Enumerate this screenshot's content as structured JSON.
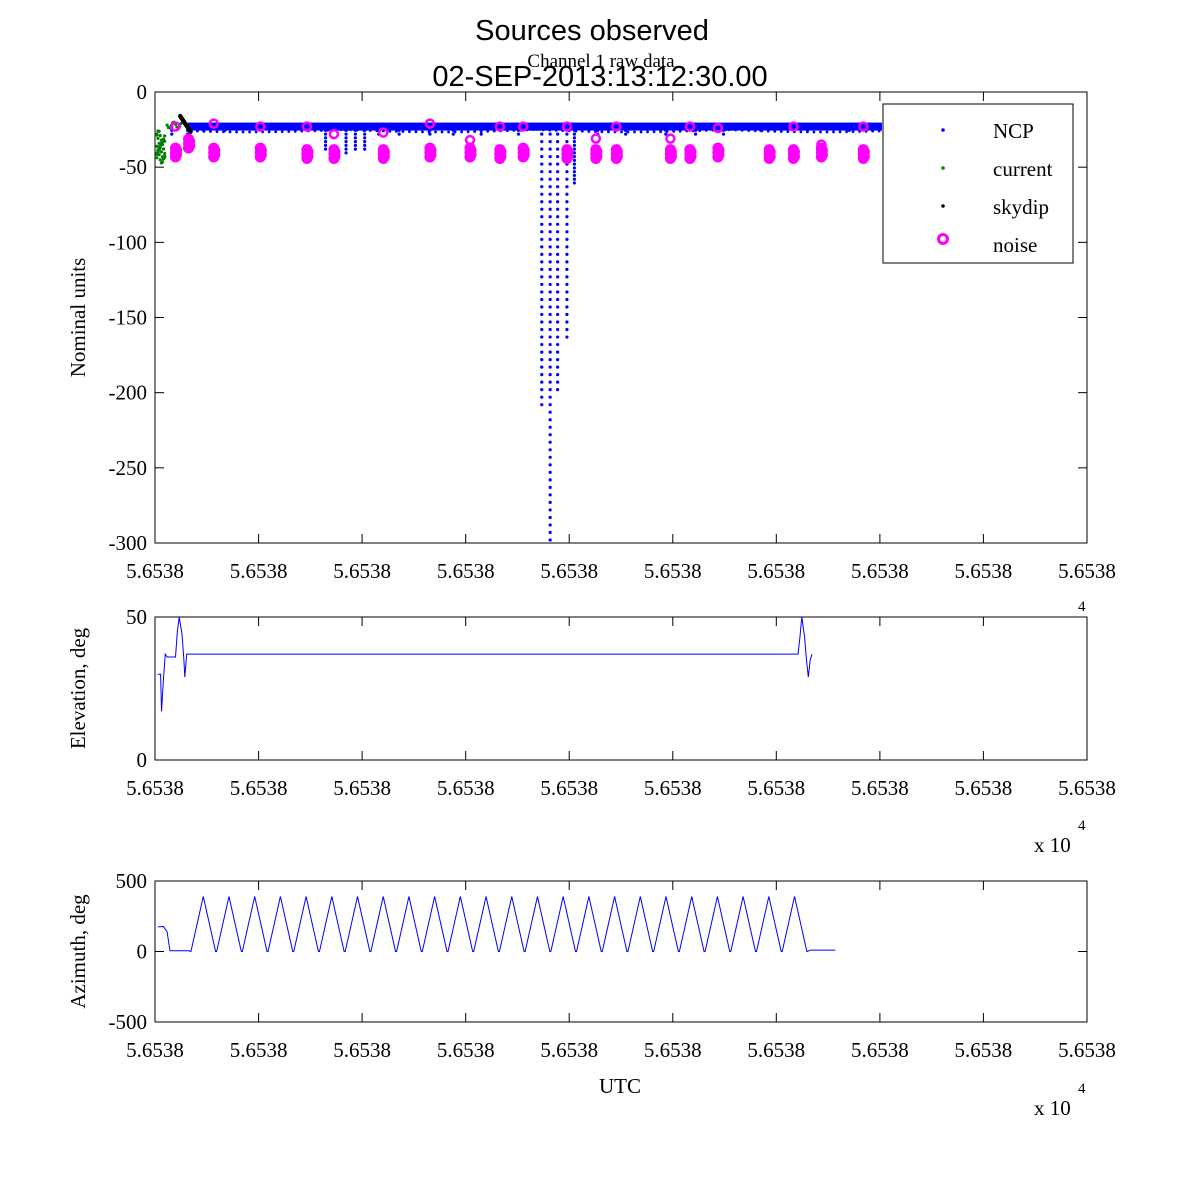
{
  "figure": {
    "title_line1": "Sources observed",
    "title_line2": "02-SEP-2013:13:12:30.00",
    "overlay_subtitle": "Channel 1 raw data",
    "exponent_label": "x 10",
    "exponent_power": "4",
    "x_axis_label": "UTC"
  },
  "chart_data": [
    {
      "type": "scatter",
      "ylabel": "Nominal units",
      "ylim": [
        -300,
        0
      ],
      "yticks": [
        "0",
        "-50",
        "-100",
        "-150",
        "-200",
        "-250",
        "-300"
      ],
      "xticklabels": [
        "5.6538",
        "5.6538",
        "5.6538",
        "5.6538",
        "5.6538",
        "5.6538",
        "5.6538",
        "5.6538",
        "5.6538",
        "5.6538"
      ],
      "legend_position": "top-right",
      "series": [
        {
          "name": "NCP",
          "color": "#0000ff",
          "marker": "dot",
          "baseline": -23,
          "spikes": [
            {
              "x": 0.415,
              "min": -212
            },
            {
              "x": 0.424,
              "min": -300
            },
            {
              "x": 0.432,
              "min": -200
            },
            {
              "x": 0.442,
              "min": -165
            },
            {
              "x": 0.45,
              "min": -62
            },
            {
              "x": 0.183,
              "min": -40
            },
            {
              "x": 0.205,
              "min": -42
            },
            {
              "x": 0.215,
              "min": -40
            },
            {
              "x": 0.225,
              "min": -40
            },
            {
              "x": 0.018,
              "min": -30
            },
            {
              "x": 0.035,
              "min": -28
            },
            {
              "x": 0.052,
              "min": -27
            },
            {
              "x": 0.075,
              "min": -26
            },
            {
              "x": 0.108,
              "min": -25
            },
            {
              "x": 0.135,
              "min": -25
            },
            {
              "x": 0.24,
              "min": -30
            },
            {
              "x": 0.262,
              "min": -30
            },
            {
              "x": 0.295,
              "min": -30
            },
            {
              "x": 0.32,
              "min": -30
            },
            {
              "x": 0.35,
              "min": -29
            },
            {
              "x": 0.39,
              "min": -30
            },
            {
              "x": 0.475,
              "min": -30
            },
            {
              "x": 0.505,
              "min": -29
            },
            {
              "x": 0.548,
              "min": -28
            },
            {
              "x": 0.58,
              "min": -28
            },
            {
              "x": 0.61,
              "min": -28
            },
            {
              "x": 0.65,
              "min": -27
            },
            {
              "x": 0.7,
              "min": -27
            },
            {
              "x": 0.745,
              "min": -26
            },
            {
              "x": 0.79,
              "min": -26
            },
            {
              "x": 0.823,
              "min": -25
            }
          ]
        },
        {
          "name": "current",
          "color": "#008000",
          "marker": "dot"
        },
        {
          "name": "skydip",
          "color": "#000000",
          "marker": "dot"
        },
        {
          "name": "noise",
          "color": "#ff00ff",
          "marker": "circle",
          "points_upper": [
            [
              0.022,
              -23
            ],
            [
              0.063,
              -21
            ],
            [
              0.113,
              -23
            ],
            [
              0.163,
              -23
            ],
            [
              0.192,
              -28
            ],
            [
              0.245,
              -27
            ],
            [
              0.295,
              -21
            ],
            [
              0.338,
              -32
            ],
            [
              0.37,
              -23
            ],
            [
              0.395,
              -23
            ],
            [
              0.442,
              -23
            ],
            [
              0.473,
              -31
            ],
            [
              0.495,
              -23
            ],
            [
              0.553,
              -31
            ],
            [
              0.574,
              -23
            ],
            [
              0.604,
              -24
            ],
            [
              0.685,
              -23
            ],
            [
              0.715,
              -35
            ],
            [
              0.76,
              -23
            ]
          ],
          "points_lower": [
            [
              0.022,
              -40
            ],
            [
              0.036,
              -34
            ],
            [
              0.063,
              -40
            ],
            [
              0.113,
              -40
            ],
            [
              0.163,
              -41
            ],
            [
              0.192,
              -41
            ],
            [
              0.245,
              -41
            ],
            [
              0.295,
              -40
            ],
            [
              0.338,
              -40
            ],
            [
              0.37,
              -41
            ],
            [
              0.395,
              -40
            ],
            [
              0.442,
              -41
            ],
            [
              0.473,
              -41
            ],
            [
              0.495,
              -41
            ],
            [
              0.553,
              -41
            ],
            [
              0.574,
              -41
            ],
            [
              0.604,
              -40
            ],
            [
              0.659,
              -41
            ],
            [
              0.685,
              -41
            ],
            [
              0.715,
              -40
            ],
            [
              0.76,
              -41
            ]
          ]
        }
      ]
    },
    {
      "type": "line",
      "ylabel": "Elevation, deg",
      "ylim": [
        0,
        50
      ],
      "yticks": [
        "50",
        "0"
      ],
      "xticklabels": [
        "5.6538",
        "5.6538",
        "5.6538",
        "5.6538",
        "5.6538",
        "5.6538",
        "5.6538",
        "5.6538",
        "5.6538",
        "5.6538"
      ],
      "series": [
        {
          "color": "#0000ff",
          "points": [
            [
              0.003,
              30
            ],
            [
              0.006,
              30
            ],
            [
              0.007,
              17
            ],
            [
              0.009,
              28
            ],
            [
              0.011,
              37
            ],
            [
              0.013,
              36
            ],
            [
              0.022,
              36
            ],
            [
              0.024,
              45
            ],
            [
              0.026,
              52
            ],
            [
              0.029,
              44
            ],
            [
              0.031,
              35
            ],
            [
              0.032,
              29
            ],
            [
              0.034,
              37
            ],
            [
              0.69,
              37
            ],
            [
              0.692,
              43
            ],
            [
              0.694,
              50
            ],
            [
              0.697,
              43
            ],
            [
              0.699,
              35
            ],
            [
              0.701,
              29
            ],
            [
              0.703,
              35
            ],
            [
              0.705,
              37
            ]
          ]
        }
      ]
    },
    {
      "type": "line",
      "ylabel": "Azimuth, deg",
      "ylim": [
        -500,
        500
      ],
      "yticks": [
        "500",
        "0",
        "-500"
      ],
      "xticklabels": [
        "5.6538",
        "5.6538",
        "5.6538",
        "5.6538",
        "5.6538",
        "5.6538",
        "5.6538",
        "5.6538",
        "5.6538",
        "5.6538"
      ],
      "series": [
        {
          "color": "#0000ff",
          "lead_in": [
            [
              0.003,
              175
            ],
            [
              0.009,
              177
            ],
            [
              0.013,
              140
            ],
            [
              0.016,
              5
            ],
            [
              0.037,
              5
            ],
            [
              0.038,
              0
            ]
          ],
          "triangle_wave": {
            "start": 0.038,
            "end": 0.7,
            "cycles": 24,
            "min": 0,
            "max": 390
          },
          "tail": [
            [
              0.7,
              0
            ],
            [
              0.703,
              10
            ],
            [
              0.73,
              10
            ]
          ]
        }
      ]
    }
  ]
}
